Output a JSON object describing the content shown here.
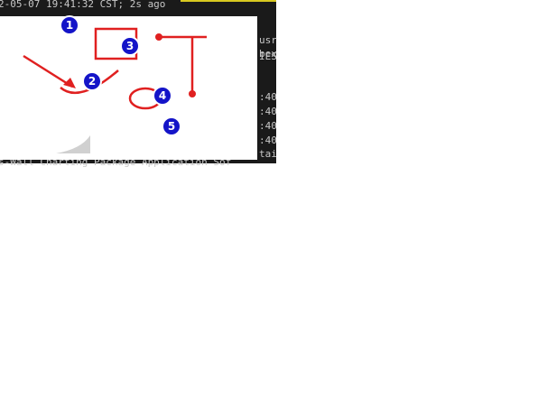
{
  "terminal": {
    "top_line": "2-05-07 19:41:32 CST; 2s ago",
    "side_lines": [
      "usr",
      "bex",
      "IES",
      ":40",
      ":40",
      ":40",
      ":40",
      "tai"
    ],
    "bottom_line": "s-Wall Charting Package Application Sof"
  },
  "markers": [
    "1",
    "2",
    "3",
    "4",
    "5"
  ]
}
